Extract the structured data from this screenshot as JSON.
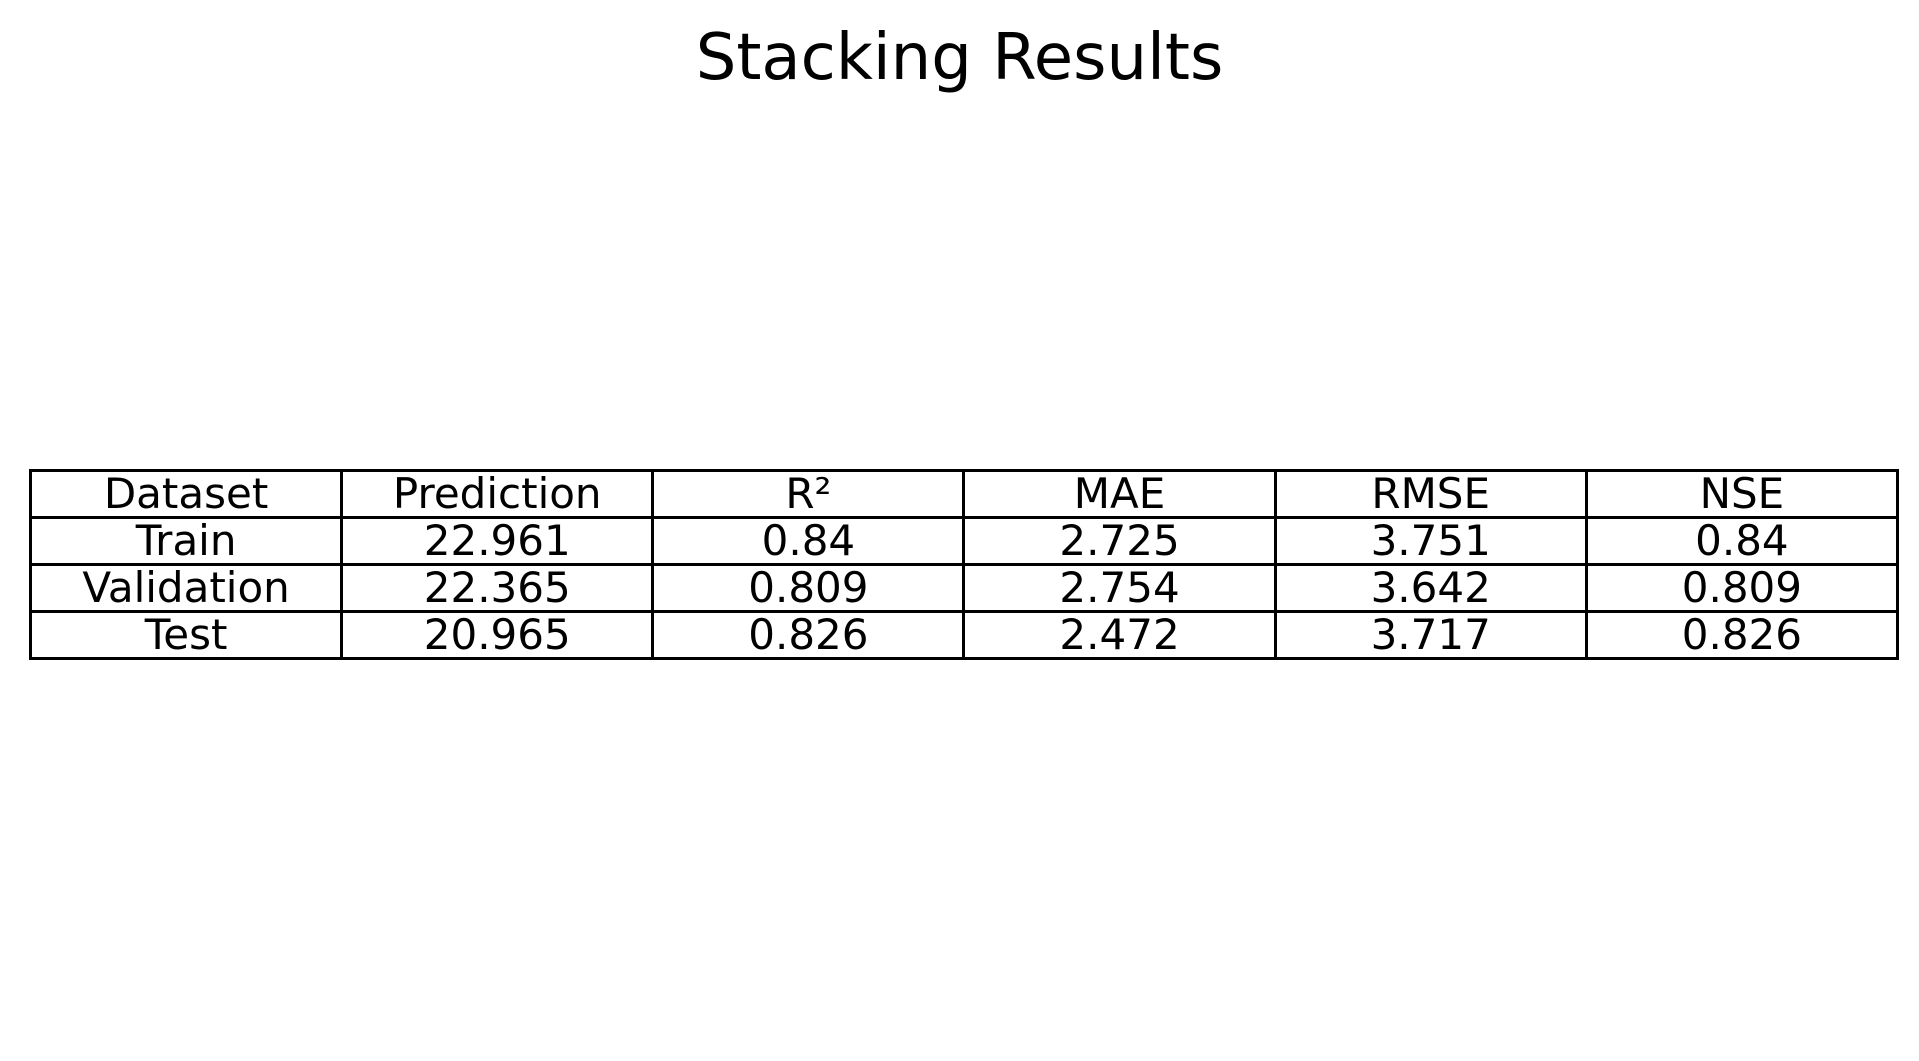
{
  "chart_data": {
    "type": "table",
    "title": "Stacking Results",
    "columns": [
      "Dataset",
      "Prediction",
      "R²",
      "MAE",
      "RMSE",
      "NSE"
    ],
    "rows": [
      [
        "Train",
        "22.961",
        "0.84",
        "2.725",
        "3.751",
        "0.84"
      ],
      [
        "Validation",
        "22.365",
        "0.809",
        "2.754",
        "3.642",
        "0.809"
      ],
      [
        "Test",
        "20.965",
        "0.826",
        "2.472",
        "3.717",
        "0.826"
      ]
    ]
  },
  "colors": {
    "text": "#000000",
    "border": "#000000",
    "background": "#ffffff"
  }
}
